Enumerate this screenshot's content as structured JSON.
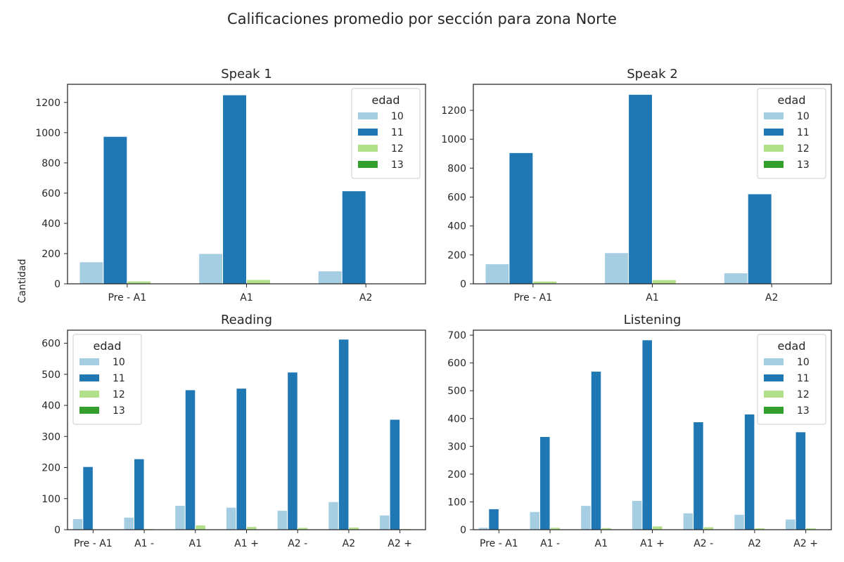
{
  "figure": {
    "title": "Calificaciones promedio por sección para zona Norte",
    "ylabel": "Cantidad"
  },
  "colors": {
    "10": "#a6cee3",
    "11": "#1f78b4",
    "12": "#b2df8a",
    "13": "#33a02c"
  },
  "chart_data": [
    {
      "type": "bar",
      "title": "Speak 1",
      "categories": [
        "Pre - A1",
        "A1",
        "A2"
      ],
      "ylim": [
        0,
        1320
      ],
      "yticks": [
        0,
        200,
        400,
        600,
        800,
        1000,
        1200
      ],
      "legend": {
        "title": "edad",
        "placement": "upper right",
        "entries": [
          "10",
          "11",
          "12",
          "13"
        ]
      },
      "series": [
        {
          "name": "10",
          "values": [
            145,
            200,
            85
          ]
        },
        {
          "name": "11",
          "values": [
            975,
            1250,
            615
          ]
        },
        {
          "name": "12",
          "values": [
            18,
            28,
            2
          ]
        },
        {
          "name": "13",
          "values": [
            2,
            2,
            0
          ]
        }
      ]
    },
    {
      "type": "bar",
      "title": "Speak 2",
      "categories": [
        "Pre - A1",
        "A1",
        "A2"
      ],
      "ylim": [
        0,
        1380
      ],
      "yticks": [
        0,
        200,
        400,
        600,
        800,
        1000,
        1200
      ],
      "legend": {
        "title": "edad",
        "placement": "upper right",
        "entries": [
          "10",
          "11",
          "12",
          "13"
        ]
      },
      "series": [
        {
          "name": "10",
          "values": [
            138,
            215,
            75
          ]
        },
        {
          "name": "11",
          "values": [
            907,
            1310,
            622
          ]
        },
        {
          "name": "12",
          "values": [
            18,
            28,
            2
          ]
        },
        {
          "name": "13",
          "values": [
            2,
            2,
            0
          ]
        }
      ]
    },
    {
      "type": "bar",
      "title": "Reading",
      "categories": [
        "Pre - A1",
        "A1 -",
        "A1",
        "A1 +",
        "A2 -",
        "A2",
        "A2 +"
      ],
      "ylim": [
        0,
        642
      ],
      "yticks": [
        0,
        100,
        200,
        300,
        400,
        500,
        600
      ],
      "legend": {
        "title": "edad",
        "placement": "upper left",
        "entries": [
          "10",
          "11",
          "12",
          "13"
        ]
      },
      "series": [
        {
          "name": "10",
          "values": [
            35,
            40,
            78,
            72,
            62,
            90,
            47
          ]
        },
        {
          "name": "11",
          "values": [
            203,
            228,
            450,
            455,
            507,
            613,
            355
          ]
        },
        {
          "name": "12",
          "values": [
            2,
            3,
            15,
            10,
            7,
            8,
            3
          ]
        },
        {
          "name": "13",
          "values": [
            0,
            0,
            1,
            1,
            1,
            1,
            0
          ]
        }
      ]
    },
    {
      "type": "bar",
      "title": "Listening",
      "categories": [
        "Pre - A1",
        "A1 -",
        "A1",
        "A1 +",
        "A2 -",
        "A2",
        "A2 +"
      ],
      "ylim": [
        0,
        718
      ],
      "yticks": [
        0,
        100,
        200,
        300,
        400,
        500,
        600,
        700
      ],
      "legend": {
        "title": "edad",
        "placement": "upper right",
        "entries": [
          "10",
          "11",
          "12",
          "13"
        ]
      },
      "series": [
        {
          "name": "10",
          "values": [
            8,
            65,
            87,
            105,
            60,
            55,
            38
          ]
        },
        {
          "name": "11",
          "values": [
            75,
            335,
            570,
            683,
            388,
            416,
            352
          ]
        },
        {
          "name": "12",
          "values": [
            2,
            8,
            7,
            13,
            10,
            6,
            6
          ]
        },
        {
          "name": "13",
          "values": [
            0,
            0,
            1,
            1,
            1,
            1,
            0
          ]
        }
      ]
    }
  ]
}
